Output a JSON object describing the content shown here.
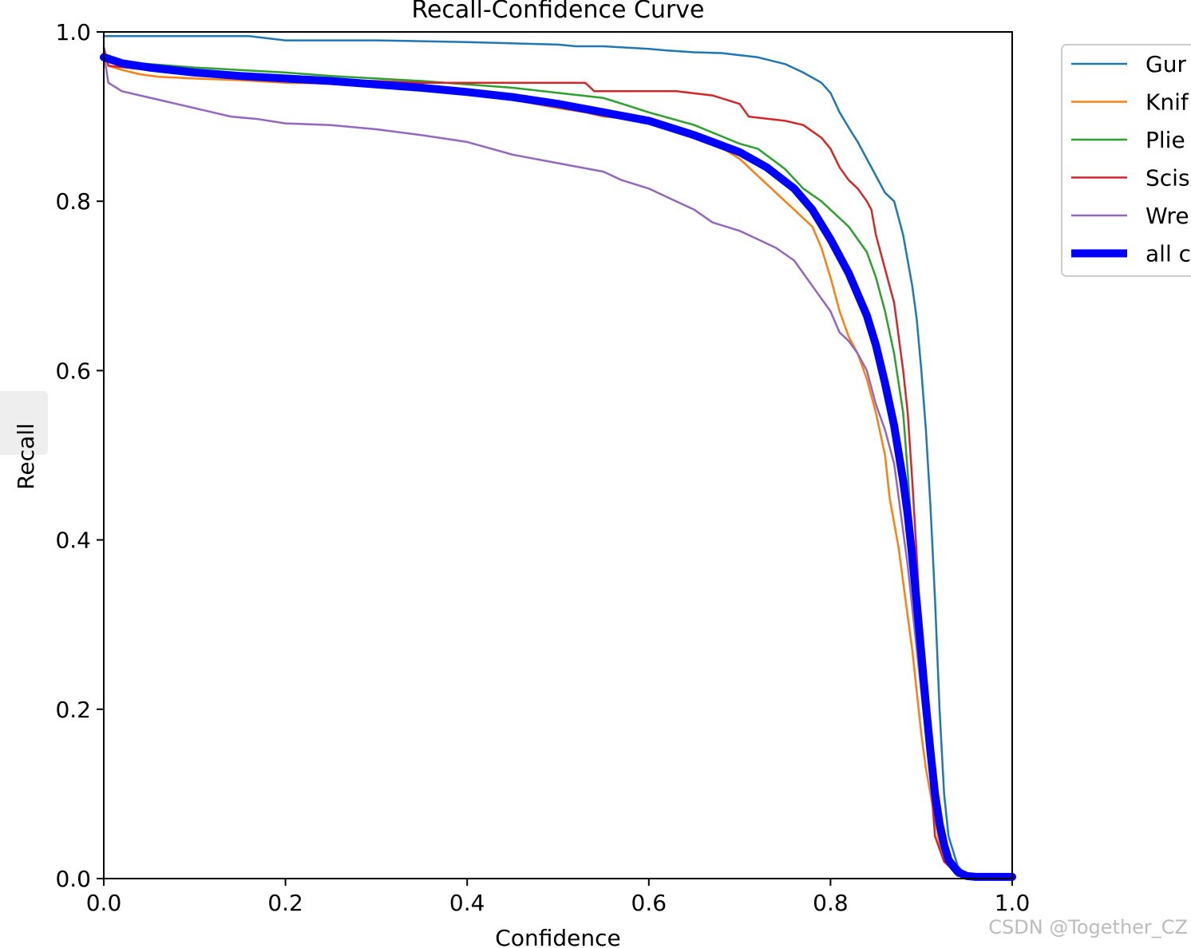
{
  "chart_data": {
    "type": "line",
    "title": "Recall-Confidence Curve",
    "xlabel": "Confidence",
    "ylabel": "Recall",
    "xlim": [
      0,
      1
    ],
    "ylim": [
      0,
      1
    ],
    "xticks": [
      "0.0",
      "0.2",
      "0.4",
      "0.6",
      "0.8",
      "1.0"
    ],
    "yticks": [
      "0.0",
      "0.2",
      "0.4",
      "0.6",
      "0.8",
      "1.0"
    ],
    "grid": false,
    "legend_position": "upper-right-outside",
    "series": [
      {
        "name": "Gur",
        "color": "#1f77b4",
        "points": [
          [
            0,
            0.995
          ],
          [
            0.16,
            0.995
          ],
          [
            0.2,
            0.99
          ],
          [
            0.3,
            0.99
          ],
          [
            0.4,
            0.988
          ],
          [
            0.5,
            0.985
          ],
          [
            0.52,
            0.983
          ],
          [
            0.55,
            0.983
          ],
          [
            0.6,
            0.98
          ],
          [
            0.62,
            0.978
          ],
          [
            0.65,
            0.976
          ],
          [
            0.68,
            0.975
          ],
          [
            0.72,
            0.97
          ],
          [
            0.75,
            0.962
          ],
          [
            0.77,
            0.952
          ],
          [
            0.79,
            0.94
          ],
          [
            0.8,
            0.928
          ],
          [
            0.81,
            0.905
          ],
          [
            0.82,
            0.887
          ],
          [
            0.83,
            0.87
          ],
          [
            0.84,
            0.85
          ],
          [
            0.85,
            0.83
          ],
          [
            0.86,
            0.81
          ],
          [
            0.87,
            0.8
          ],
          [
            0.875,
            0.78
          ],
          [
            0.88,
            0.76
          ],
          [
            0.885,
            0.73
          ],
          [
            0.89,
            0.7
          ],
          [
            0.895,
            0.66
          ],
          [
            0.9,
            0.6
          ],
          [
            0.905,
            0.53
          ],
          [
            0.91,
            0.44
          ],
          [
            0.915,
            0.33
          ],
          [
            0.92,
            0.2
          ],
          [
            0.925,
            0.1
          ],
          [
            0.93,
            0.05
          ],
          [
            0.94,
            0.015
          ],
          [
            0.95,
            0.003
          ],
          [
            1,
            0
          ]
        ]
      },
      {
        "name": "Knif",
        "color": "#ff7f0e",
        "points": [
          [
            0,
            0.98
          ],
          [
            0.005,
            0.96
          ],
          [
            0.02,
            0.955
          ],
          [
            0.04,
            0.95
          ],
          [
            0.06,
            0.947
          ],
          [
            0.1,
            0.945
          ],
          [
            0.15,
            0.943
          ],
          [
            0.2,
            0.94
          ],
          [
            0.3,
            0.938
          ],
          [
            0.35,
            0.935
          ],
          [
            0.4,
            0.928
          ],
          [
            0.45,
            0.92
          ],
          [
            0.5,
            0.91
          ],
          [
            0.53,
            0.905
          ],
          [
            0.55,
            0.9
          ],
          [
            0.6,
            0.895
          ],
          [
            0.64,
            0.885
          ],
          [
            0.67,
            0.87
          ],
          [
            0.7,
            0.85
          ],
          [
            0.72,
            0.83
          ],
          [
            0.74,
            0.81
          ],
          [
            0.76,
            0.79
          ],
          [
            0.78,
            0.77
          ],
          [
            0.79,
            0.745
          ],
          [
            0.8,
            0.71
          ],
          [
            0.81,
            0.67
          ],
          [
            0.82,
            0.64
          ],
          [
            0.83,
            0.62
          ],
          [
            0.84,
            0.59
          ],
          [
            0.85,
            0.55
          ],
          [
            0.86,
            0.5
          ],
          [
            0.865,
            0.45
          ],
          [
            0.87,
            0.42
          ],
          [
            0.875,
            0.39
          ],
          [
            0.88,
            0.35
          ],
          [
            0.885,
            0.31
          ],
          [
            0.89,
            0.27
          ],
          [
            0.895,
            0.22
          ],
          [
            0.9,
            0.17
          ],
          [
            0.905,
            0.13
          ],
          [
            0.91,
            0.1
          ],
          [
            0.915,
            0.07
          ],
          [
            0.92,
            0.04
          ],
          [
            0.93,
            0.015
          ],
          [
            0.94,
            0.003
          ],
          [
            1,
            0
          ]
        ]
      },
      {
        "name": "Plie",
        "color": "#2ca02c",
        "points": [
          [
            0,
            0.975
          ],
          [
            0.01,
            0.965
          ],
          [
            0.05,
            0.962
          ],
          [
            0.1,
            0.958
          ],
          [
            0.15,
            0.955
          ],
          [
            0.2,
            0.952
          ],
          [
            0.25,
            0.948
          ],
          [
            0.3,
            0.945
          ],
          [
            0.35,
            0.942
          ],
          [
            0.4,
            0.938
          ],
          [
            0.45,
            0.934
          ],
          [
            0.5,
            0.928
          ],
          [
            0.55,
            0.922
          ],
          [
            0.58,
            0.912
          ],
          [
            0.6,
            0.905
          ],
          [
            0.65,
            0.89
          ],
          [
            0.7,
            0.868
          ],
          [
            0.72,
            0.862
          ],
          [
            0.75,
            0.838
          ],
          [
            0.77,
            0.815
          ],
          [
            0.79,
            0.8
          ],
          [
            0.8,
            0.79
          ],
          [
            0.82,
            0.77
          ],
          [
            0.84,
            0.74
          ],
          [
            0.85,
            0.71
          ],
          [
            0.86,
            0.67
          ],
          [
            0.87,
            0.62
          ],
          [
            0.88,
            0.55
          ],
          [
            0.885,
            0.48
          ],
          [
            0.89,
            0.4
          ],
          [
            0.895,
            0.33
          ],
          [
            0.9,
            0.26
          ],
          [
            0.905,
            0.2
          ],
          [
            0.91,
            0.14
          ],
          [
            0.915,
            0.09
          ],
          [
            0.92,
            0.05
          ],
          [
            0.93,
            0.015
          ],
          [
            0.94,
            0.003
          ],
          [
            1,
            0
          ]
        ]
      },
      {
        "name": "Scis",
        "color": "#d62728",
        "points": [
          [
            0,
            0.982
          ],
          [
            0.005,
            0.96
          ],
          [
            0.05,
            0.955
          ],
          [
            0.1,
            0.95
          ],
          [
            0.2,
            0.945
          ],
          [
            0.3,
            0.942
          ],
          [
            0.35,
            0.94
          ],
          [
            0.4,
            0.94
          ],
          [
            0.5,
            0.94
          ],
          [
            0.53,
            0.94
          ],
          [
            0.54,
            0.93
          ],
          [
            0.6,
            0.93
          ],
          [
            0.63,
            0.93
          ],
          [
            0.67,
            0.925
          ],
          [
            0.7,
            0.915
          ],
          [
            0.71,
            0.9
          ],
          [
            0.75,
            0.895
          ],
          [
            0.77,
            0.89
          ],
          [
            0.79,
            0.875
          ],
          [
            0.8,
            0.862
          ],
          [
            0.81,
            0.84
          ],
          [
            0.82,
            0.825
          ],
          [
            0.83,
            0.815
          ],
          [
            0.84,
            0.8
          ],
          [
            0.845,
            0.79
          ],
          [
            0.85,
            0.76
          ],
          [
            0.86,
            0.72
          ],
          [
            0.87,
            0.68
          ],
          [
            0.875,
            0.64
          ],
          [
            0.88,
            0.6
          ],
          [
            0.885,
            0.55
          ],
          [
            0.89,
            0.47
          ],
          [
            0.895,
            0.38
          ],
          [
            0.9,
            0.28
          ],
          [
            0.905,
            0.2
          ],
          [
            0.91,
            0.12
          ],
          [
            0.915,
            0.05
          ],
          [
            0.925,
            0.02
          ],
          [
            0.935,
            0.01
          ],
          [
            0.945,
            0.003
          ],
          [
            1,
            0
          ]
        ]
      },
      {
        "name": "Wre",
        "color": "#9467bd",
        "points": [
          [
            0,
            0.975
          ],
          [
            0.005,
            0.94
          ],
          [
            0.02,
            0.93
          ],
          [
            0.04,
            0.925
          ],
          [
            0.06,
            0.92
          ],
          [
            0.08,
            0.915
          ],
          [
            0.1,
            0.91
          ],
          [
            0.12,
            0.905
          ],
          [
            0.14,
            0.9
          ],
          [
            0.17,
            0.897
          ],
          [
            0.2,
            0.892
          ],
          [
            0.25,
            0.89
          ],
          [
            0.3,
            0.885
          ],
          [
            0.35,
            0.878
          ],
          [
            0.4,
            0.87
          ],
          [
            0.45,
            0.855
          ],
          [
            0.5,
            0.845
          ],
          [
            0.55,
            0.835
          ],
          [
            0.57,
            0.825
          ],
          [
            0.6,
            0.815
          ],
          [
            0.63,
            0.8
          ],
          [
            0.65,
            0.79
          ],
          [
            0.67,
            0.775
          ],
          [
            0.7,
            0.765
          ],
          [
            0.72,
            0.755
          ],
          [
            0.74,
            0.745
          ],
          [
            0.76,
            0.73
          ],
          [
            0.78,
            0.7
          ],
          [
            0.8,
            0.67
          ],
          [
            0.81,
            0.645
          ],
          [
            0.82,
            0.635
          ],
          [
            0.83,
            0.62
          ],
          [
            0.84,
            0.6
          ],
          [
            0.85,
            0.56
          ],
          [
            0.86,
            0.53
          ],
          [
            0.87,
            0.49
          ],
          [
            0.875,
            0.45
          ],
          [
            0.88,
            0.41
          ],
          [
            0.885,
            0.37
          ],
          [
            0.89,
            0.32
          ],
          [
            0.895,
            0.27
          ],
          [
            0.9,
            0.22
          ],
          [
            0.905,
            0.17
          ],
          [
            0.91,
            0.12
          ],
          [
            0.915,
            0.08
          ],
          [
            0.92,
            0.05
          ],
          [
            0.93,
            0.02
          ],
          [
            0.94,
            0.005
          ],
          [
            1,
            0
          ]
        ]
      },
      {
        "name": "all c",
        "color": "#0000ff",
        "points": [
          [
            0,
            0.97
          ],
          [
            0.02,
            0.963
          ],
          [
            0.05,
            0.958
          ],
          [
            0.1,
            0.952
          ],
          [
            0.15,
            0.948
          ],
          [
            0.2,
            0.945
          ],
          [
            0.25,
            0.942
          ],
          [
            0.3,
            0.938
          ],
          [
            0.35,
            0.934
          ],
          [
            0.4,
            0.929
          ],
          [
            0.45,
            0.923
          ],
          [
            0.5,
            0.915
          ],
          [
            0.55,
            0.905
          ],
          [
            0.6,
            0.895
          ],
          [
            0.65,
            0.878
          ],
          [
            0.7,
            0.858
          ],
          [
            0.73,
            0.84
          ],
          [
            0.76,
            0.815
          ],
          [
            0.78,
            0.79
          ],
          [
            0.8,
            0.755
          ],
          [
            0.82,
            0.715
          ],
          [
            0.84,
            0.665
          ],
          [
            0.85,
            0.63
          ],
          [
            0.86,
            0.585
          ],
          [
            0.87,
            0.535
          ],
          [
            0.88,
            0.47
          ],
          [
            0.885,
            0.43
          ],
          [
            0.89,
            0.38
          ],
          [
            0.895,
            0.325
          ],
          [
            0.9,
            0.265
          ],
          [
            0.905,
            0.205
          ],
          [
            0.91,
            0.15
          ],
          [
            0.915,
            0.1
          ],
          [
            0.92,
            0.065
          ],
          [
            0.925,
            0.04
          ],
          [
            0.93,
            0.022
          ],
          [
            0.94,
            0.008
          ],
          [
            0.95,
            0.003
          ],
          [
            0.96,
            0.002
          ],
          [
            1,
            0.002
          ]
        ]
      }
    ]
  },
  "watermark": "CSDN @Together_CZ"
}
